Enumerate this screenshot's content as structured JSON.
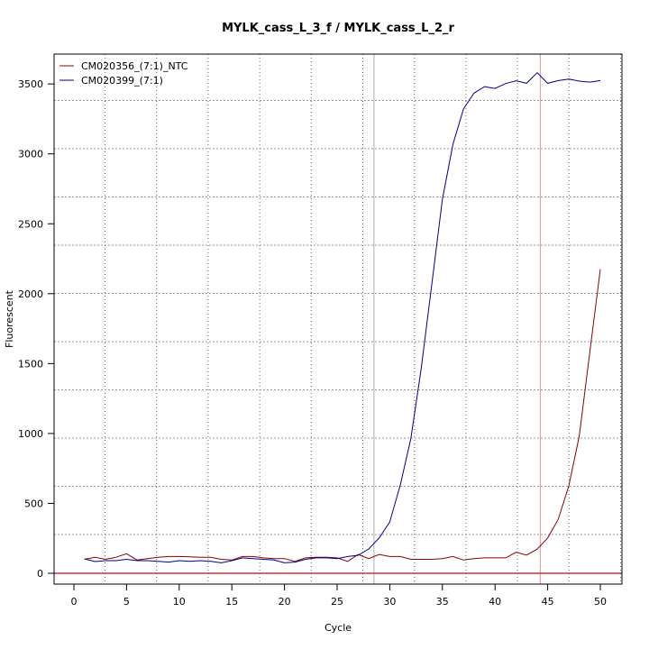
{
  "chart_data": {
    "type": "line",
    "title": "MYLK_cass_L_3_f / MYLK_cass_L_2_r",
    "xlabel": "Cycle",
    "ylabel": "Fluorescent",
    "xlim": [
      -2,
      52
    ],
    "ylim": [
      -70,
      3720
    ],
    "xticks": [
      0,
      5,
      10,
      15,
      20,
      25,
      30,
      35,
      40,
      45,
      50
    ],
    "yticks": [
      0,
      500,
      1000,
      1500,
      2000,
      2500,
      3000,
      3500
    ],
    "grid": true,
    "legend_position": "top-left",
    "x": [
      1,
      2,
      3,
      4,
      5,
      6,
      7,
      8,
      9,
      10,
      11,
      12,
      13,
      14,
      15,
      16,
      17,
      18,
      19,
      20,
      21,
      22,
      23,
      24,
      25,
      26,
      27,
      28,
      29,
      30,
      31,
      32,
      33,
      34,
      35,
      36,
      37,
      38,
      39,
      40,
      41,
      42,
      43,
      44,
      45,
      46,
      47,
      48,
      49,
      50
    ],
    "series": [
      {
        "name": "CM020356_(7:1)_NTC",
        "color": "#8b0000",
        "values": [
          100,
          115,
          100,
          115,
          140,
          95,
          105,
          115,
          120,
          120,
          118,
          115,
          115,
          100,
          95,
          120,
          120,
          110,
          105,
          105,
          85,
          110,
          115,
          115,
          110,
          85,
          135,
          105,
          135,
          120,
          120,
          100,
          100,
          100,
          105,
          120,
          95,
          105,
          110,
          110,
          110,
          150,
          130,
          173,
          253,
          386,
          625,
          980,
          1580,
          2175
        ]
      },
      {
        "name": "CM020399_(7:1)",
        "color": "#00008b",
        "values": [
          103,
          84,
          90,
          90,
          100,
          90,
          90,
          85,
          80,
          90,
          85,
          90,
          85,
          75,
          90,
          110,
          105,
          100,
          95,
          75,
          80,
          100,
          110,
          110,
          105,
          120,
          129,
          174,
          253,
          367,
          632,
          963,
          1470,
          2070,
          2675,
          3069,
          3322,
          3434,
          3481,
          3468,
          3503,
          3522,
          3505,
          3580,
          3505,
          3524,
          3535,
          3520,
          3513,
          3524
        ]
      }
    ],
    "baseline": {
      "y": 0,
      "color": "#cc3333"
    },
    "vertical_markers": [
      {
        "x": 28.5,
        "color": "#bbbbbb"
      },
      {
        "x": 44.3,
        "color": "#e8a0a0"
      }
    ]
  }
}
